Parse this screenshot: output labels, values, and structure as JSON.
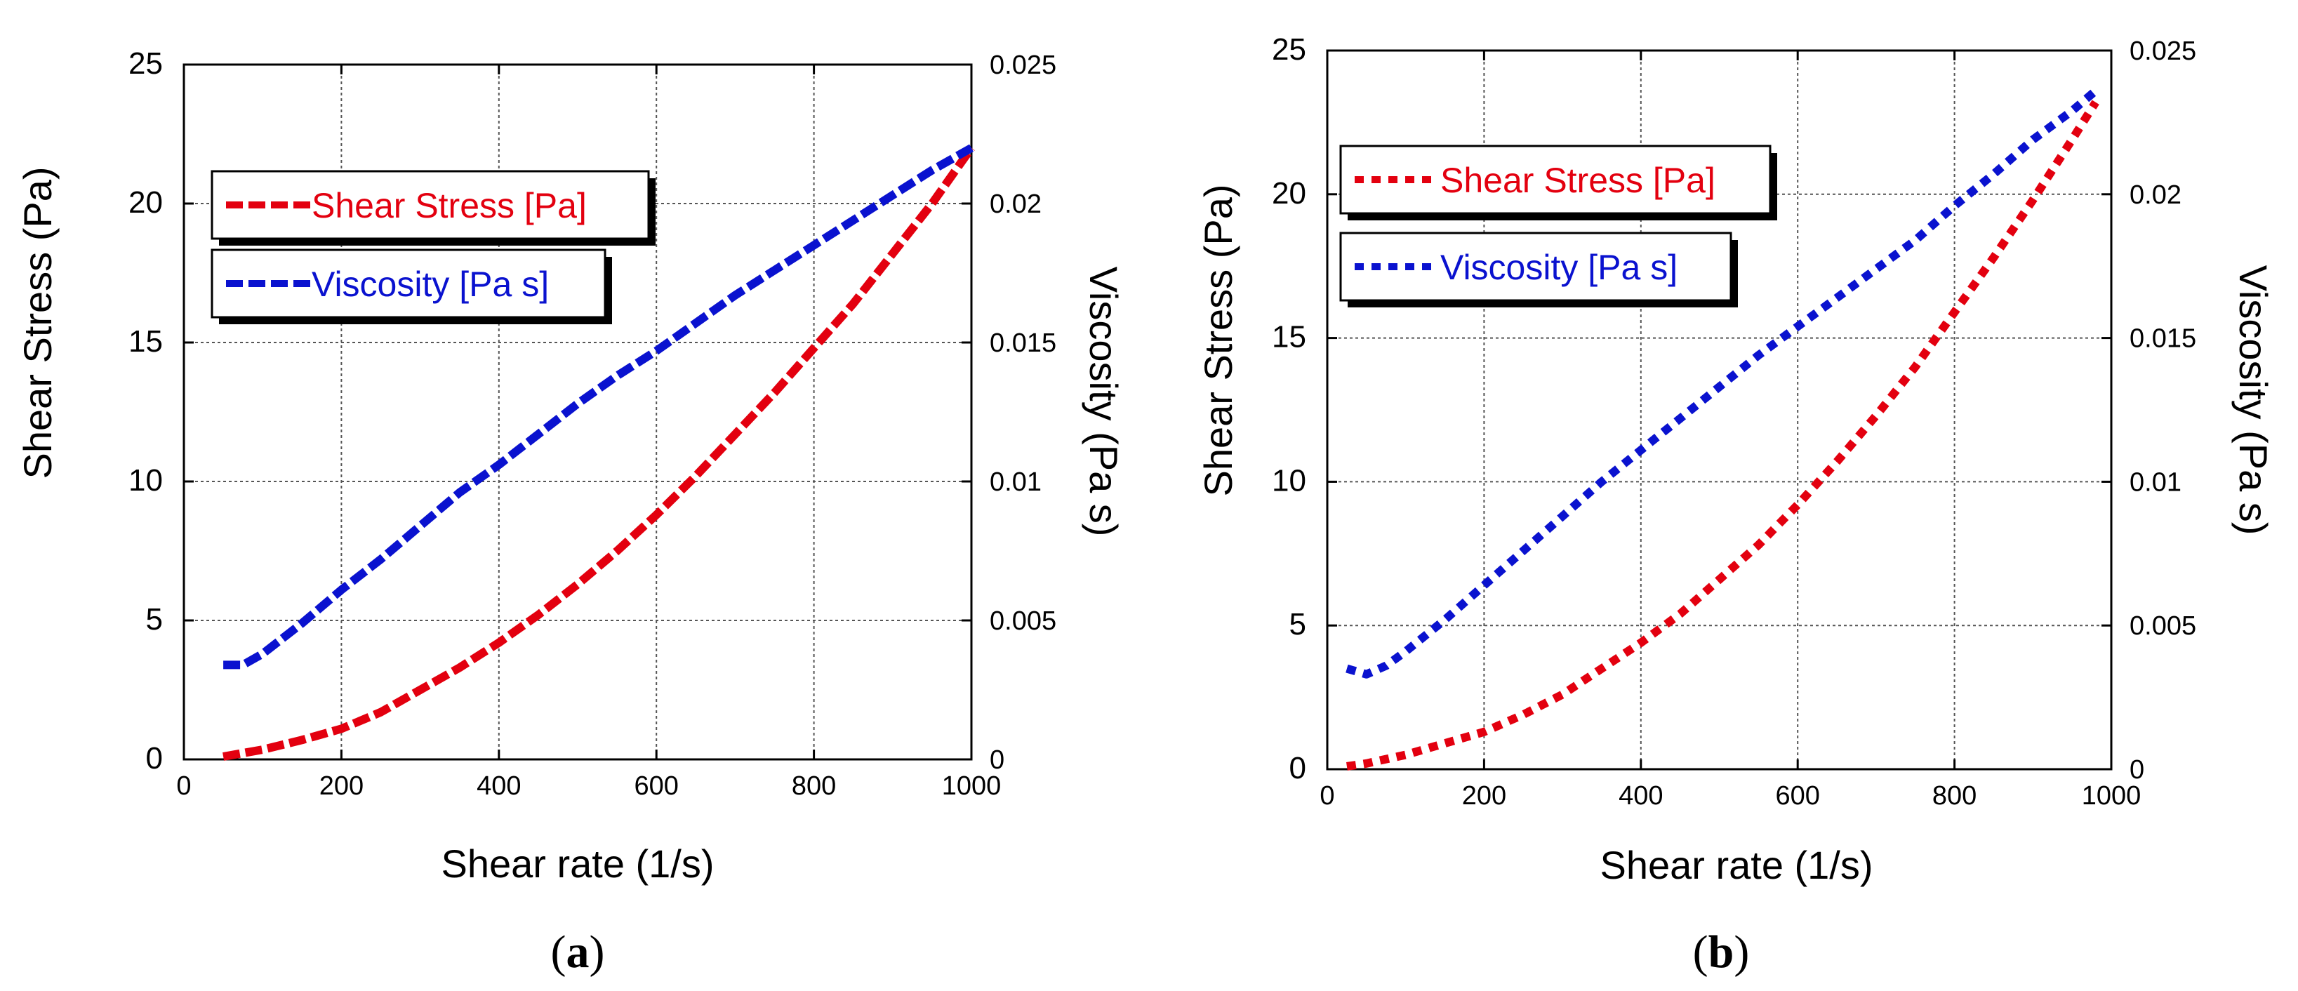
{
  "chart_data": [
    {
      "type": "line",
      "panel_label": "(a)",
      "panel_label_parts": {
        "open": "(",
        "letter": "a",
        "close": ")"
      },
      "xlabel": "Shear rate (1/s)",
      "ylabel": "Shear Stress (Pa)",
      "y2label": "Viscosity (Pa s)",
      "xlim": [
        0,
        1000
      ],
      "ylim": [
        0,
        25
      ],
      "y2lim": [
        0,
        0.025
      ],
      "x_ticks": [
        "0",
        "200",
        "400",
        "600",
        "800",
        "1000"
      ],
      "y_ticks": [
        "0",
        "5",
        "10",
        "15",
        "20",
        "25"
      ],
      "y2_ticks": [
        "0",
        "0.005",
        "0.01",
        "0.015",
        "0.02",
        "0.025"
      ],
      "grid": true,
      "legend_placement": "top-left",
      "series": [
        {
          "name": "Shear Stress [Pa]",
          "axis": "left",
          "color": "#e3000f",
          "x": [
            50,
            100,
            150,
            200,
            250,
            300,
            350,
            400,
            450,
            500,
            550,
            600,
            650,
            700,
            750,
            800,
            850,
            900,
            950,
            1000
          ],
          "y": [
            0.1,
            0.35,
            0.7,
            1.1,
            1.7,
            2.5,
            3.3,
            4.2,
            5.2,
            6.3,
            7.5,
            8.8,
            10.2,
            11.7,
            13.2,
            14.8,
            16.4,
            18.2,
            20.0,
            22.0
          ]
        },
        {
          "name": "Viscosity [Pa s]",
          "axis": "right",
          "color": "#0a12cf",
          "x": [
            50,
            75,
            100,
            150,
            200,
            250,
            300,
            350,
            400,
            450,
            500,
            550,
            600,
            650,
            700,
            750,
            800,
            850,
            900,
            950,
            1000
          ],
          "y": [
            0.0034,
            0.0034,
            0.0038,
            0.0049,
            0.0061,
            0.0072,
            0.0084,
            0.0096,
            0.0106,
            0.0117,
            0.0128,
            0.0138,
            0.0147,
            0.0157,
            0.0167,
            0.0176,
            0.0185,
            0.0194,
            0.0203,
            0.0212,
            0.022
          ]
        }
      ]
    },
    {
      "type": "line",
      "panel_label": "(b)",
      "panel_label_parts": {
        "open": "(",
        "letter": "b",
        "close": ")"
      },
      "xlabel": "Shear rate (1/s)",
      "ylabel": "Shear Stress (Pa)",
      "y2label": "Viscosity (Pa s)",
      "xlim": [
        0,
        1000
      ],
      "ylim": [
        0,
        25
      ],
      "y2lim": [
        0,
        0.025
      ],
      "x_ticks": [
        "0",
        "200",
        "400",
        "600",
        "800",
        "1000"
      ],
      "y_ticks": [
        "0",
        "5",
        "10",
        "15",
        "20",
        "25"
      ],
      "y2_ticks": [
        "0",
        "0.005",
        "0.01",
        "0.015",
        "0.02",
        "0.025"
      ],
      "grid": true,
      "legend_placement": "top-left",
      "series": [
        {
          "name": "Shear Stress [Pa]",
          "axis": "left",
          "color": "#e3000f",
          "x": [
            25,
            50,
            100,
            150,
            200,
            250,
            300,
            350,
            400,
            450,
            500,
            550,
            600,
            650,
            700,
            750,
            800,
            850,
            900,
            950,
            980
          ],
          "y": [
            0.1,
            0.2,
            0.5,
            0.9,
            1.3,
            1.9,
            2.6,
            3.5,
            4.4,
            5.4,
            6.6,
            7.8,
            9.2,
            10.7,
            12.3,
            14.0,
            15.9,
            17.8,
            19.8,
            21.9,
            23.2
          ]
        },
        {
          "name": "Viscosity [Pa s]",
          "axis": "right",
          "color": "#0a12cf",
          "x": [
            25,
            50,
            75,
            100,
            150,
            200,
            250,
            300,
            350,
            400,
            450,
            500,
            550,
            600,
            650,
            700,
            750,
            800,
            850,
            900,
            950,
            980
          ],
          "y": [
            0.0035,
            0.0033,
            0.0036,
            0.0041,
            0.0052,
            0.0064,
            0.0076,
            0.0088,
            0.01,
            0.0111,
            0.0122,
            0.0133,
            0.0144,
            0.0154,
            0.0164,
            0.0174,
            0.0184,
            0.0196,
            0.0207,
            0.0219,
            0.0229,
            0.0236
          ]
        }
      ]
    }
  ]
}
